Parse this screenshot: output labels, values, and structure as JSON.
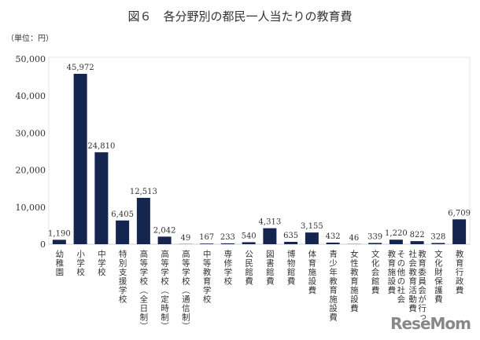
{
  "chart_data": {
    "type": "bar",
    "title": "図６　各分野別の都民一人当たりの教育費",
    "unit_label": "（単位：円）",
    "categories": [
      "幼稚園",
      "小学校",
      "中学校",
      "特別支援学校",
      "高等学校（全日制）",
      "高等学校（定時制）",
      "高等学校（通信制）",
      "中等教育学校",
      "専修学校",
      "公民館費",
      "図書館費",
      "博物館費",
      "体育施設費",
      "青少年教育施設費",
      "女性教育施設費",
      "文化会館費",
      "その他の社会教育施設費",
      "教育委員会が行った社会教育活動費",
      "文化財保護費",
      "教育行政費"
    ],
    "category_display": [
      "幼稚園",
      "小学校",
      "中学校",
      "特別支援学校",
      "高等学校︵全日制︶",
      "高等学校︵定時制︶",
      "高等学校︵通信制︶",
      "中等教育学校",
      "専修学校",
      "公民館費",
      "図書館費",
      "博物館費",
      "体育施設費",
      "青少年教育施設費",
      "女性教育施設費",
      "文化会館費",
      "その他の社会\n教育施設費",
      "教育委員会が行っ\n社会教育活動費",
      "文化財保護費",
      "教育行政費"
    ],
    "values": [
      1190,
      45972,
      24810,
      6405,
      12513,
      2042,
      49,
      167,
      233,
      540,
      4313,
      635,
      3155,
      432,
      46,
      339,
      1220,
      822,
      328,
      6709
    ],
    "data_labels": [
      "1,190",
      "45,972",
      "24,810",
      "6,405",
      "12,513",
      "2,042",
      "49",
      "167",
      "233",
      "540",
      "4,313",
      "635",
      "3,155",
      "432",
      "46",
      "339",
      "1,220",
      "822",
      "328",
      "6,709"
    ],
    "yticks": [
      0,
      10000,
      20000,
      30000,
      40000,
      50000
    ],
    "ytick_labels": [
      "0",
      "10,000",
      "20,000",
      "30,000",
      "40,000",
      "50,000"
    ],
    "ylim": [
      0,
      50000
    ],
    "xlabel": "",
    "ylabel": "",
    "grid": false,
    "bar_color": "#14254f"
  },
  "watermark": "ReseMom"
}
